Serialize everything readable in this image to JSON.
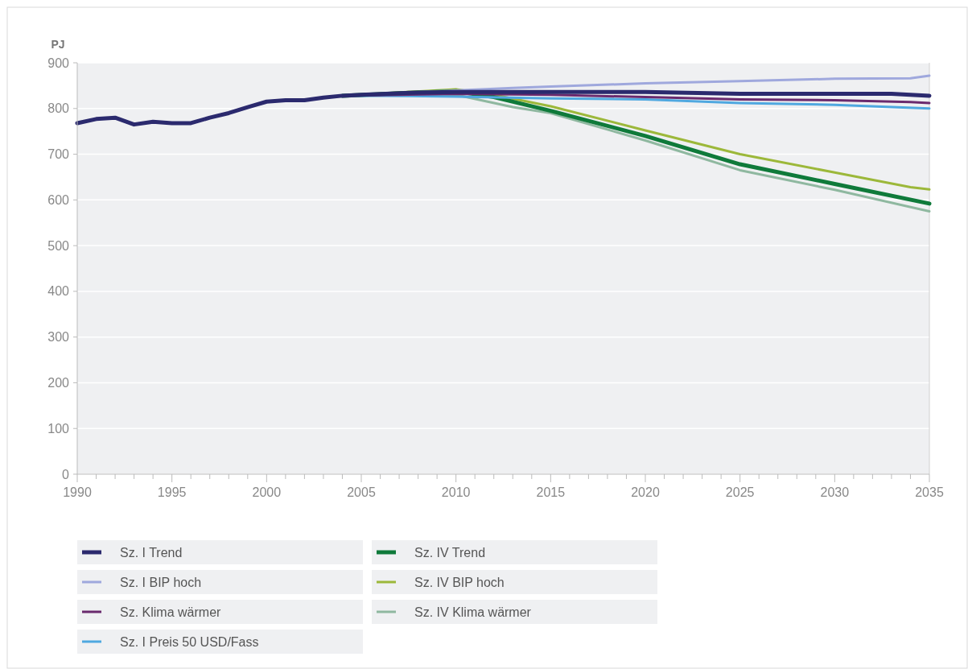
{
  "chart_data": {
    "type": "line",
    "ylabel": "PJ",
    "xlim": [
      1990,
      2035
    ],
    "ylim": [
      0,
      900
    ],
    "xticks": [
      1990,
      {
        "value": 1991,
        "label": null
      },
      {
        "value": 1992,
        "label": null
      },
      {
        "value": 1993,
        "label": null
      },
      {
        "value": 1994,
        "label": null
      },
      1995,
      {
        "value": 1996,
        "label": null
      },
      {
        "value": 1997,
        "label": null
      },
      {
        "value": 1998,
        "label": null
      },
      {
        "value": 1999,
        "label": null
      },
      2000,
      {
        "value": 2001,
        "label": null
      },
      {
        "value": 2002,
        "label": null
      },
      {
        "value": 2003,
        "label": null
      },
      {
        "value": 2004,
        "label": null
      },
      2005,
      {
        "value": 2006,
        "label": null
      },
      {
        "value": 2007,
        "label": null
      },
      {
        "value": 2008,
        "label": null
      },
      {
        "value": 2009,
        "label": null
      },
      2010,
      {
        "value": 2011,
        "label": null
      },
      {
        "value": 2012,
        "label": null
      },
      {
        "value": 2013,
        "label": null
      },
      {
        "value": 2014,
        "label": null
      },
      2015,
      {
        "value": 2016,
        "label": null
      },
      {
        "value": 2017,
        "label": null
      },
      {
        "value": 2018,
        "label": null
      },
      {
        "value": 2019,
        "label": null
      },
      2020,
      {
        "value": 2021,
        "label": null
      },
      {
        "value": 2022,
        "label": null
      },
      {
        "value": 2023,
        "label": null
      },
      {
        "value": 2024,
        "label": null
      },
      2025,
      {
        "value": 2026,
        "label": null
      },
      {
        "value": 2027,
        "label": null
      },
      {
        "value": 2028,
        "label": null
      },
      {
        "value": 2029,
        "label": null
      },
      2030,
      {
        "value": 2031,
        "label": null
      },
      {
        "value": 2032,
        "label": null
      },
      {
        "value": 2033,
        "label": null
      },
      {
        "value": 2034,
        "label": null
      },
      2035
    ],
    "yticks": [
      0,
      100,
      200,
      300,
      400,
      500,
      600,
      700,
      800,
      900
    ],
    "grid": "y",
    "legend": "bottom",
    "line_style": "solid",
    "marker": "none",
    "series": [
      {
        "name": "Sz. I Trend",
        "color": "#2b2a6e",
        "x": [
          1990,
          1991,
          1992,
          1993,
          1994,
          1995,
          1996,
          1997,
          1998,
          1999,
          2000,
          2001,
          2002,
          2003,
          2004,
          2005,
          2008,
          2010,
          2015,
          2020,
          2025,
          2030,
          2033,
          2035
        ],
        "values": [
          768,
          777,
          780,
          765,
          771,
          768,
          768,
          780,
          790,
          803,
          815,
          818,
          818,
          824,
          828,
          830,
          835,
          836,
          836,
          836,
          832,
          832,
          832,
          828
        ]
      },
      {
        "name": "Sz. I BIP hoch",
        "color": "#9fa8dd",
        "x": [
          2004,
          2013,
          2015,
          2020,
          2025,
          2030,
          2034,
          2035
        ],
        "values": [
          828,
          845,
          848,
          855,
          860,
          865,
          866,
          872
        ]
      },
      {
        "name": "Sz. Klima wärmer",
        "color": "#6a2a6e",
        "x": [
          2004,
          2010,
          2015,
          2020,
          2025,
          2030,
          2034,
          2035
        ],
        "values": [
          828,
          832,
          830,
          825,
          820,
          818,
          814,
          812
        ]
      },
      {
        "name": "Sz. I Preis 50 USD/Fass",
        "color": "#4fa8e0",
        "x": [
          2004,
          2006,
          2010,
          2015,
          2020,
          2025,
          2030,
          2035
        ],
        "values": [
          828,
          828,
          826,
          822,
          820,
          812,
          808,
          800
        ]
      },
      {
        "name": "Sz. IV Trend",
        "color": "#0f7a3a",
        "x": [
          2004,
          2008,
          2010,
          2012,
          2015,
          2020,
          2025,
          2030,
          2035
        ],
        "values": [
          828,
          835,
          838,
          825,
          795,
          740,
          678,
          635,
          592
        ]
      },
      {
        "name": "Sz. IV BIP hoch",
        "color": "#9cb83a",
        "x": [
          2004,
          2010,
          2012,
          2015,
          2020,
          2025,
          2030,
          2034,
          2035
        ],
        "values": [
          828,
          842,
          830,
          805,
          752,
          700,
          660,
          628,
          623
        ]
      },
      {
        "name": "Sz. IV Klima wärmer",
        "color": "#8fb8a0",
        "x": [
          2004,
          2010,
          2013,
          2015,
          2020,
          2025,
          2030,
          2035
        ],
        "values": [
          828,
          830,
          803,
          790,
          730,
          665,
          622,
          575
        ]
      }
    ]
  }
}
